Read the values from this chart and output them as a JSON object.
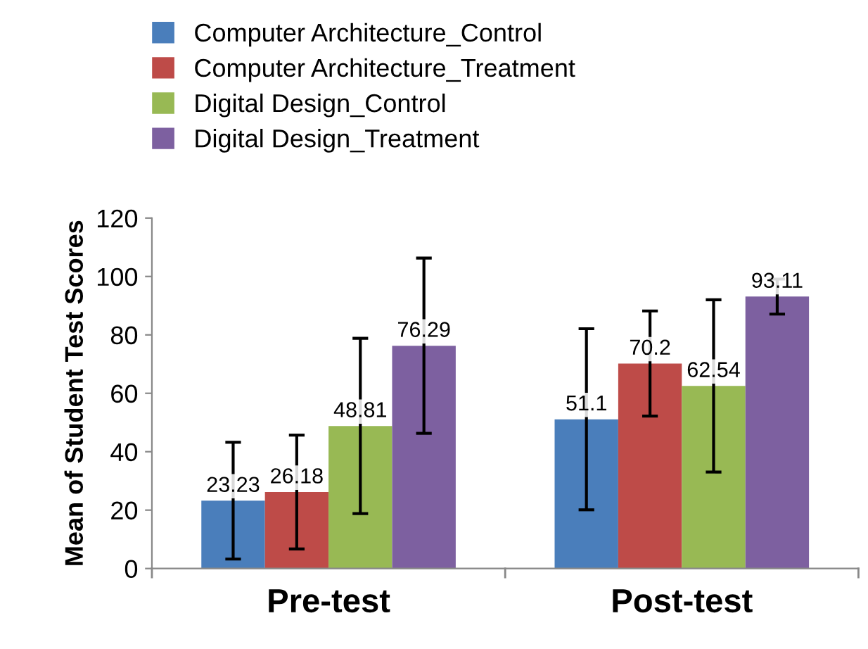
{
  "chart_data": {
    "type": "bar",
    "ylabel": "Mean of Student Test Scores",
    "categories": [
      "Pre-test",
      "Post-test"
    ],
    "series": [
      {
        "name": "Computer Architecture_Control",
        "color": "#4a7ebb",
        "values": [
          23.23,
          51.1
        ],
        "errors": [
          20,
          31
        ]
      },
      {
        "name": "Computer Architecture_Treatment",
        "color": "#be4b48",
        "values": [
          26.18,
          70.2
        ],
        "errors": [
          19.5,
          18
        ]
      },
      {
        "name": "Digital Design_Control",
        "color": "#98b954",
        "values": [
          48.81,
          62.54
        ],
        "errors": [
          30,
          29.5
        ]
      },
      {
        "name": "Digital Design_Treatment",
        "color": "#7d60a0",
        "values": [
          76.29,
          93.11
        ],
        "errors": [
          30,
          6
        ]
      }
    ],
    "ylim": [
      0,
      120
    ],
    "yticks": [
      0,
      20,
      40,
      60,
      80,
      100,
      120
    ],
    "data_labels": true,
    "legend": "top",
    "grid": false
  }
}
